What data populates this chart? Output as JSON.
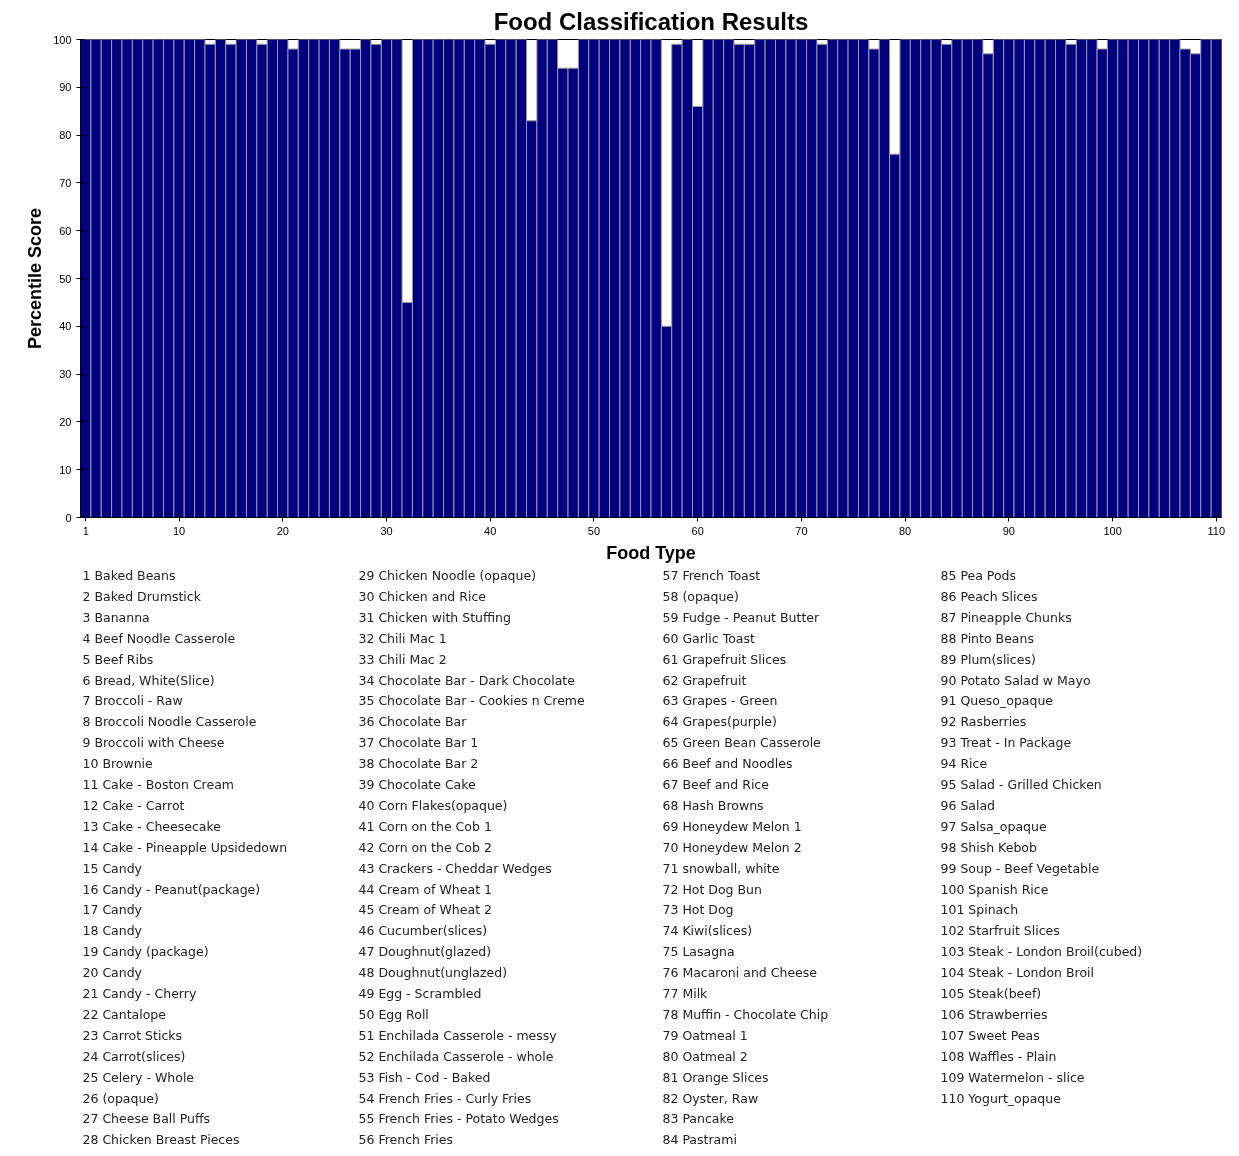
{
  "chart_data": {
    "type": "bar",
    "title": "Food Classification Results",
    "xlabel": "Food Type",
    "ylabel": "Percentile Score",
    "color": "#000080",
    "x": [
      1,
      2,
      3,
      4,
      5,
      6,
      7,
      8,
      9,
      10,
      11,
      12,
      13,
      14,
      15,
      16,
      17,
      18,
      19,
      20,
      21,
      22,
      23,
      24,
      25,
      26,
      27,
      28,
      29,
      30,
      31,
      32,
      33,
      34,
      35,
      36,
      37,
      38,
      39,
      40,
      41,
      42,
      43,
      44,
      45,
      46,
      47,
      48,
      49,
      50,
      51,
      52,
      53,
      54,
      55,
      56,
      57,
      58,
      59,
      60,
      61,
      62,
      63,
      64,
      65,
      66,
      67,
      68,
      69,
      70,
      71,
      72,
      73,
      74,
      75,
      76,
      77,
      78,
      79,
      80,
      81,
      82,
      83,
      84,
      85,
      86,
      87,
      88,
      89,
      90,
      91,
      92,
      93,
      94,
      95,
      96,
      97,
      98,
      99,
      100,
      101,
      102,
      103,
      104,
      105,
      106,
      107,
      108,
      109,
      110
    ],
    "values": [
      100,
      100,
      100,
      100,
      100,
      100,
      100,
      100,
      100,
      100,
      100,
      100,
      99,
      100,
      99,
      100,
      100,
      99,
      100,
      100,
      98,
      100,
      100,
      100,
      100,
      98,
      98,
      100,
      99,
      100,
      100,
      45,
      100,
      100,
      100,
      100,
      100,
      100,
      100,
      99,
      100,
      100,
      100,
      83,
      100,
      100,
      94,
      94,
      100,
      100,
      100,
      100,
      100,
      100,
      100,
      100,
      40,
      99,
      100,
      86,
      100,
      100,
      100,
      99,
      99,
      100,
      100,
      100,
      100,
      100,
      100,
      99,
      100,
      100,
      100,
      100,
      98,
      100,
      76,
      100,
      100,
      100,
      100,
      99,
      100,
      100,
      100,
      97,
      100,
      100,
      100,
      100,
      100,
      100,
      100,
      99,
      100,
      100,
      98,
      100,
      100,
      100,
      100,
      100,
      100,
      100,
      98,
      97,
      100,
      100
    ],
    "xlim": [
      0.5,
      110.5
    ],
    "xticks": [
      1,
      10,
      20,
      30,
      40,
      50,
      60,
      70,
      80,
      90,
      100,
      110
    ],
    "ylim": [
      0,
      100
    ],
    "yticks": [
      0,
      10,
      20,
      30,
      40,
      50,
      60,
      70,
      80,
      90,
      100
    ],
    "grid": false,
    "annotations": [
      "1 Baked Beans",
      "2 Baked Drumstick",
      "3 Bananna",
      "4 Beef Noodle Casserole",
      "5 Beef Ribs",
      "6 Bread, White(Slice)",
      "7 Broccoli - Raw",
      "8 Broccoli Noodle Casserole",
      "9 Broccoli with Cheese",
      "10 Brownie",
      "11 Cake - Boston Cream",
      "12 Cake - Carrot",
      "13 Cake - Cheesecake",
      "14 Cake - Pineapple Upsidedown",
      "15 Candy",
      "16 Candy - Peanut(package)",
      "17 Candy",
      "18 Candy",
      "19 Candy (package)",
      "20 Candy",
      "21 Candy - Cherry",
      "22 Cantalope",
      "23 Carrot Sticks",
      "24 Carrot(slices)",
      "25 Celery - Whole",
      "26 (opaque)",
      "27 Cheese Ball Puffs",
      "28 Chicken Breast Pieces",
      "29 Chicken Noodle (opaque)",
      "30 Chicken and Rice",
      "31 Chicken with Stuffing",
      "32 Chili Mac 1",
      "33 Chili Mac 2",
      "34 Chocolate Bar - Dark Chocolate",
      "35 Chocolate Bar - Cookies n Creme",
      "36 Chocolate Bar",
      "37 Chocolate Bar 1",
      "38 Chocolate Bar 2",
      "39 Chocolate Cake",
      "40 Corn Flakes(opaque)",
      "41 Corn on the Cob 1",
      "42 Corn on the Cob 2",
      "43 Crackers - Cheddar Wedges",
      "44 Cream of Wheat 1",
      "45 Cream of Wheat 2",
      "46 Cucumber(slices)",
      "47 Doughnut(glazed)",
      "48 Doughnut(unglazed)",
      "49 Egg - Scrambled",
      "50 Egg Roll",
      "51 Enchilada Casserole - messy",
      "52 Enchilada Casserole - whole",
      "53 Fish - Cod - Baked",
      "54 French Fries - Curly Fries",
      "55 French Fries - Potato Wedges",
      "56 French Fries",
      "57 French Toast",
      "58 (opaque)",
      "59 Fudge - Peanut Butter",
      "60 Garlic Toast",
      "61 Grapefruit Slices",
      "62 Grapefruit",
      "63 Grapes - Green",
      "64 Grapes(purple)",
      "65 Green Bean Casserole",
      "66 Beef and Noodles",
      "67 Beef and Rice",
      "68 Hash Browns",
      "69 Honeydew Melon 1",
      "70 Honeydew Melon 2",
      "71 snowball, white",
      "72 Hot Dog Bun",
      "73 Hot Dog",
      "74 Kiwi(slices)",
      "75 Lasagna",
      "76 Macaroni and Cheese",
      "77 Milk",
      "78 Muffin - Chocolate Chip",
      "79 Oatmeal 1",
      "80 Oatmeal 2",
      "81 Orange Slices",
      "82 Oyster, Raw",
      "83 Pancake",
      "84 Pastrami",
      "85 Pea Pods",
      "86 Peach Slices",
      "87 Pineapple Chunks",
      "88 Pinto Beans",
      "89 Plum(slices)",
      "90 Potato Salad w Mayo",
      "91 Queso_opaque",
      "92 Rasberries",
      "93 Treat - In Package",
      "94 Rice",
      "95 Salad - Grilled Chicken",
      "96 Salad",
      "97 Salsa_opaque",
      "98 Shish Kebob",
      "99 Soup - Beef Vegetable",
      "100 Spanish Rice",
      "101 Spinach",
      "102 Starfruit Slices",
      "103 Steak - London Broil(cubed)",
      "104 Steak - London Broil",
      "105 Steak(beef)",
      "106 Strawberries",
      "107 Sweet Peas",
      "108 Waffles - Plain",
      "109 Watermelon - slice",
      "110 Yogurt_opaque"
    ]
  }
}
